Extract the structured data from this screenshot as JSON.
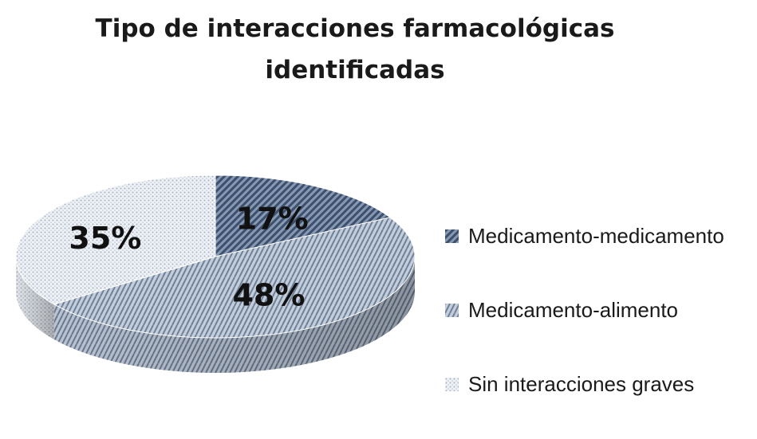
{
  "chart_data": {
    "type": "pie",
    "title": [
      "Tipo de interacciones  farmacológicas",
      "identificadas"
    ],
    "categories": [
      "Medicamento-medicamento",
      "Medicamento-alimento",
      "Sin interacciones graves"
    ],
    "values": [
      17,
      48,
      35
    ],
    "data_labels": [
      "17%",
      "48%",
      "35%"
    ],
    "legend_placement": "right",
    "style": "3d",
    "colors": [
      "#5a6f8e",
      "#a3b1c5",
      "#d7dde7"
    ]
  }
}
